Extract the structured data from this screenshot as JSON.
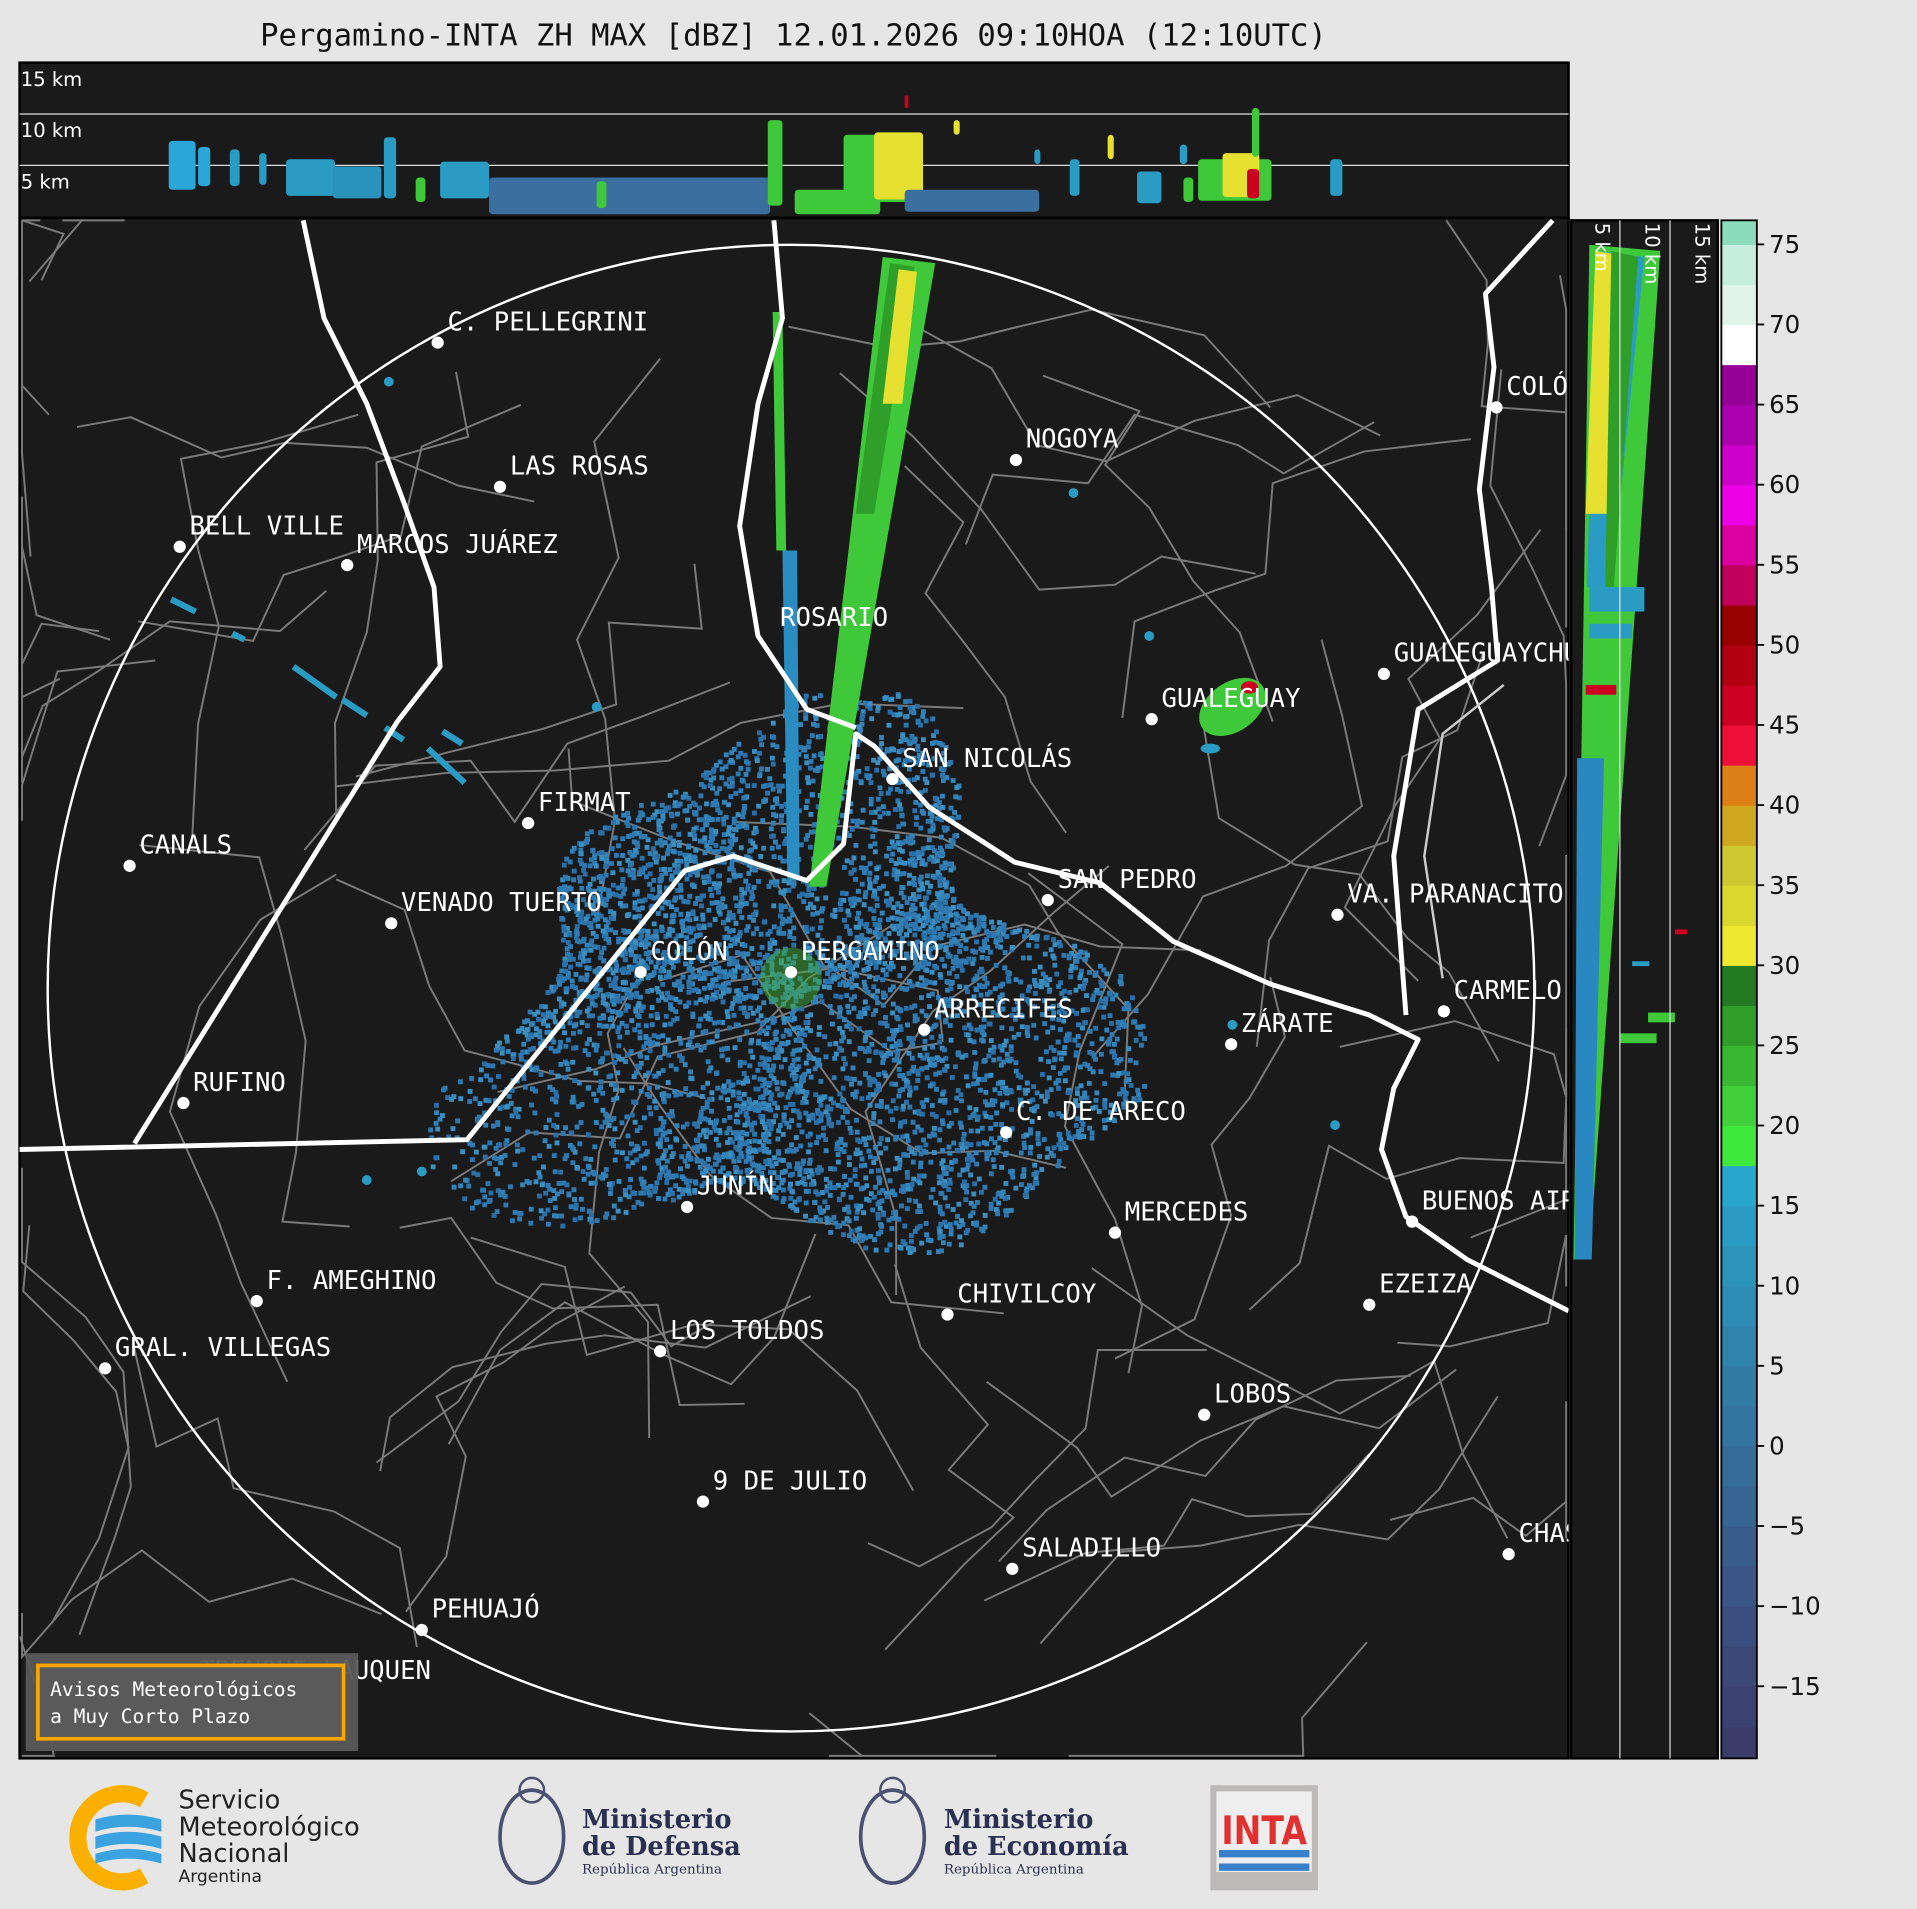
{
  "title": "Pergamino-INTA ZH MAX [dBZ] 12.01.2026 09:10HOA (12:10UTC)",
  "top_panel": {
    "labels": [
      "15 km",
      "10 km",
      "5 km"
    ]
  },
  "right_panel": {
    "labels": [
      "5 km",
      "10 km",
      "15 km"
    ]
  },
  "cities": [
    "C. PELLEGRINI",
    "LAS ROSAS",
    "BELL VILLE",
    "MARCOS JUÁREZ",
    "NOGOYA",
    "COLÓN",
    "ROSARIO",
    "GUALEGUAYCHÚ",
    "GUALEGUAY",
    "SAN NICOLÁS",
    "FIRMAT",
    "CANALS",
    "SAN PEDRO",
    "VA. PARANACITO",
    "VENADO TUERTO",
    "COLÓN",
    "PERGAMINO",
    "CARMELO",
    "ARRECIFES",
    "ZÁRATE",
    "RUFINO",
    "C. DE ARECO",
    "JUNÍN",
    "MERCEDES",
    "BUENOS AIRES",
    "F. AMEGHINO",
    "EZEIZA",
    "CHIVILCOY",
    "GRAL. VILLEGAS",
    "LOS TOLDOS",
    "LOBOS",
    "9 DE JULIO",
    "CHASCOMÚS",
    "SALADILLO",
    "PEHUAJÓ",
    "TRENQUE LAUQUEN"
  ],
  "colorbar": {
    "unit": "dBZ",
    "range": [
      -19.5,
      76.5
    ],
    "ticks": [
      "−15",
      "−10",
      "−5",
      "0",
      "5",
      "10",
      "15",
      "20",
      "25",
      "30",
      "35",
      "40",
      "45",
      "50",
      "55",
      "60",
      "65",
      "70",
      "75"
    ],
    "tick_values": [
      -15,
      -10,
      -5,
      0,
      5,
      10,
      15,
      20,
      25,
      30,
      35,
      40,
      45,
      50,
      55,
      60,
      65,
      70,
      75
    ],
    "bands": [
      [
        -20,
        "#3b3c6a"
      ],
      [
        -17.5,
        "#3b4272"
      ],
      [
        -15,
        "#3b4878"
      ],
      [
        -12.5,
        "#3a4f80"
      ],
      [
        -10,
        "#395687"
      ],
      [
        -7.5,
        "#385d8d"
      ],
      [
        -5,
        "#376594"
      ],
      [
        -2.5,
        "#356c9a"
      ],
      [
        0,
        "#3474a1"
      ],
      [
        2.5,
        "#327ba7"
      ],
      [
        5,
        "#3083ad"
      ],
      [
        7.5,
        "#2e8bb4"
      ],
      [
        10,
        "#2c93bb"
      ],
      [
        12.5,
        "#2a9cc3"
      ],
      [
        15,
        "#29a6cc"
      ],
      [
        17.5,
        "#3fe83c"
      ],
      [
        20,
        "#3fd03a"
      ],
      [
        22.5,
        "#38b830"
      ],
      [
        25,
        "#2f9f2a"
      ],
      [
        27.5,
        "#237a22"
      ],
      [
        30,
        "#efe830"
      ],
      [
        32.5,
        "#dcd830"
      ],
      [
        35,
        "#cfc830"
      ],
      [
        37.5,
        "#d0a820"
      ],
      [
        40,
        "#dc8016"
      ],
      [
        42.5,
        "#ee1038"
      ],
      [
        45,
        "#cc0020"
      ],
      [
        47.5,
        "#b20010"
      ],
      [
        50,
        "#990000"
      ],
      [
        52.5,
        "#c0005a"
      ],
      [
        55,
        "#dc00a0"
      ],
      [
        57.5,
        "#ec00e8"
      ],
      [
        60,
        "#cc00c8"
      ],
      [
        62.5,
        "#aa00b0"
      ],
      [
        65,
        "#960096"
      ],
      [
        67.5,
        "#ffffff"
      ],
      [
        70,
        "#e0f4ea"
      ],
      [
        72.5,
        "#c6eede"
      ],
      [
        75,
        "#8adcbc"
      ]
    ]
  },
  "warning_box": {
    "line1": "Avisos Meteorológicos",
    "line2": "a Muy Corto Plazo",
    "border_color": "#ffa500"
  },
  "logos": {
    "smn": [
      "Servicio",
      "Meteorológico",
      "Nacional",
      "Argentina"
    ],
    "defensa": [
      "Ministerio",
      "de Defensa",
      "República Argentina"
    ],
    "economia": [
      "Ministerio",
      "de Economía",
      "República Argentina"
    ],
    "inta": "INTA"
  }
}
